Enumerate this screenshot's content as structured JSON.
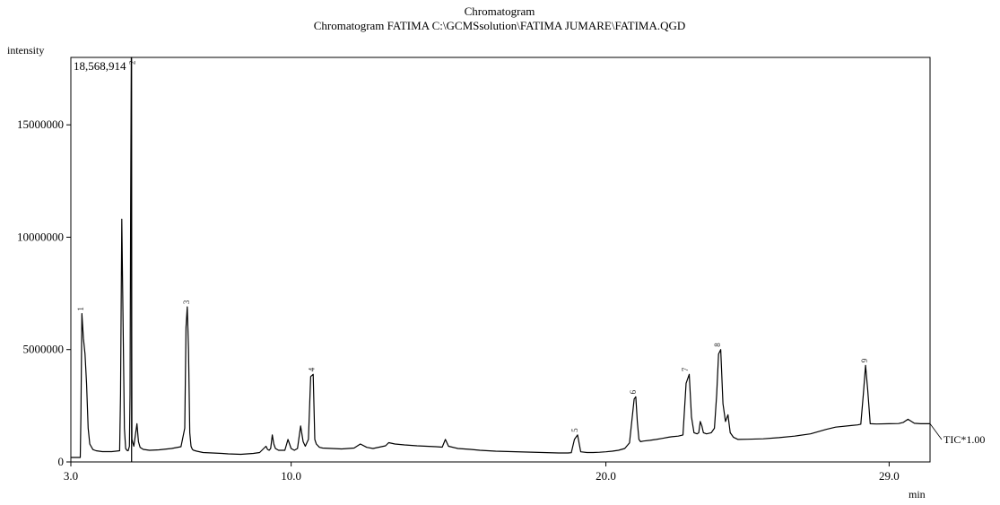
{
  "chart_data": {
    "type": "line",
    "title": "Chromatogram",
    "subtitle": "Chromatogram FATIMA C:\\GCMSsolution\\FATIMA JUMARE\\FATIMA.QGD",
    "ylabel": "intensity",
    "xlabel": "min",
    "xlim": [
      3.0,
      30.3
    ],
    "ylim": [
      0,
      18000000
    ],
    "x_ticks": [
      3.0,
      10.0,
      20.0,
      29.0
    ],
    "x_tick_labels": [
      "3.0",
      "10.0",
      "20.0",
      "29.0"
    ],
    "y_ticks": [
      0,
      5000000,
      10000000,
      15000000
    ],
    "y_tick_labels": [
      "0",
      "5000000",
      "10000000",
      "15000000"
    ],
    "max_intensity_label": "18,568,914",
    "trace_label": "TIC*1.00",
    "grid": false,
    "series": [
      {
        "values_x": [
          3.0,
          3.3,
          3.32,
          3.35,
          3.4,
          3.45,
          3.5,
          3.55,
          3.6,
          3.7,
          3.8,
          3.9,
          4.0,
          4.3,
          4.55,
          4.58,
          4.62,
          4.66,
          4.7,
          4.74,
          4.78,
          4.82,
          4.86,
          4.88,
          4.9,
          4.92,
          4.94,
          5.0,
          5.1,
          5.15,
          5.2,
          5.3,
          5.5,
          5.8,
          6.2,
          6.5,
          6.62,
          6.66,
          6.7,
          6.74,
          6.78,
          6.82,
          6.86,
          6.9,
          7.0,
          7.2,
          7.5,
          7.8,
          8.0,
          8.4,
          8.8,
          9.0,
          9.2,
          9.25,
          9.3,
          9.35,
          9.4,
          9.45,
          9.5,
          9.6,
          9.8,
          9.9,
          10.0,
          10.1,
          10.2,
          10.3,
          10.38,
          10.45,
          10.55,
          10.62,
          10.7,
          10.75,
          10.8,
          10.9,
          11.0,
          11.3,
          11.6,
          12.0,
          12.2,
          12.4,
          12.6,
          13.0,
          13.1,
          13.3,
          13.6,
          14.0,
          14.3,
          14.6,
          14.8,
          14.9,
          15.0,
          15.3,
          15.7,
          16.0,
          16.5,
          17.0,
          17.5,
          18.0,
          18.5,
          18.8,
          18.9,
          19.0,
          19.1,
          19.2,
          19.4,
          19.6,
          19.8,
          20.0,
          20.2,
          20.4,
          20.6,
          20.75,
          20.9,
          20.95,
          21.0,
          21.05,
          21.1,
          21.2,
          21.4,
          21.6,
          21.8,
          22.0,
          22.1,
          22.3,
          22.45,
          22.55,
          22.65,
          22.72,
          22.8,
          22.9,
          22.95,
          23.0,
          23.05,
          23.1,
          23.2,
          23.35,
          23.45,
          23.52,
          23.58,
          23.65,
          23.72,
          23.8,
          23.88,
          23.95,
          24.05,
          24.2,
          24.5,
          25.0,
          25.5,
          26.0,
          26.5,
          27.0,
          27.3,
          27.8,
          28.0,
          28.1,
          28.18,
          28.25,
          28.32,
          28.4,
          28.6,
          29.0,
          29.3,
          29.45,
          29.6,
          29.8,
          30.0,
          30.3
        ],
        "values_y": [
          200000,
          200000,
          2000000,
          6600000,
          5500000,
          4800000,
          3500000,
          1500000,
          800000,
          550000,
          500000,
          480000,
          460000,
          460000,
          500000,
          3000000,
          10800000,
          6000000,
          1500000,
          600000,
          520000,
          500000,
          700000,
          3000000,
          11500000,
          18000000,
          1000000,
          700000,
          1700000,
          900000,
          650000,
          560000,
          520000,
          540000,
          600000,
          680000,
          1500000,
          6000000,
          6900000,
          5000000,
          1300000,
          700000,
          560000,
          520000,
          480000,
          420000,
          400000,
          380000,
          360000,
          340000,
          380000,
          420000,
          700000,
          560000,
          520000,
          600000,
          1200000,
          800000,
          600000,
          520000,
          520000,
          1000000,
          600000,
          520000,
          600000,
          1600000,
          900000,
          700000,
          1000000,
          3800000,
          3900000,
          1000000,
          800000,
          650000,
          620000,
          600000,
          580000,
          620000,
          800000,
          650000,
          600000,
          720000,
          860000,
          800000,
          760000,
          720000,
          700000,
          680000,
          660000,
          1000000,
          700000,
          600000,
          560000,
          520000,
          480000,
          460000,
          440000,
          420000,
          400000,
          400000,
          410000,
          1000000,
          1200000,
          450000,
          420000,
          420000,
          430000,
          450000,
          480000,
          520000,
          600000,
          850000,
          2800000,
          2900000,
          1800000,
          1000000,
          900000,
          930000,
          960000,
          1000000,
          1050000,
          1100000,
          1120000,
          1150000,
          1200000,
          3500000,
          3900000,
          2000000,
          1300000,
          1250000,
          1300000,
          1800000,
          1600000,
          1300000,
          1250000,
          1300000,
          1500000,
          3000000,
          4800000,
          5000000,
          2600000,
          1800000,
          2100000,
          1300000,
          1100000,
          1000000,
          1010000,
          1030000,
          1080000,
          1150000,
          1250000,
          1450000,
          1550000,
          1620000,
          1650000,
          1680000,
          3000000,
          4300000,
          3200000,
          1700000,
          1690000,
          1700000,
          1710000,
          1760000,
          1900000,
          1720000,
          1700000,
          1700000
        ]
      }
    ],
    "peak_labels": [
      {
        "label": "1",
        "x": 3.34,
        "y": 6600000
      },
      {
        "label": "2",
        "x": 4.98,
        "y": 18568914
      },
      {
        "label": "3",
        "x": 6.7,
        "y": 6900000
      },
      {
        "label": "4",
        "x": 10.68,
        "y": 3900000
      },
      {
        "label": "5",
        "x": 19.05,
        "y": 1200000
      },
      {
        "label": "6",
        "x": 20.9,
        "y": 2900000
      },
      {
        "label": "7",
        "x": 22.55,
        "y": 3900000
      },
      {
        "label": "8",
        "x": 23.58,
        "y": 5000000
      },
      {
        "label": "9",
        "x": 28.25,
        "y": 4300000
      }
    ]
  }
}
